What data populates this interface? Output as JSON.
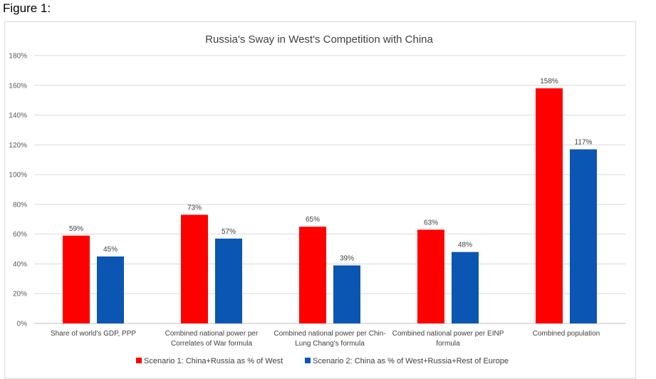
{
  "figure_label": "Figure 1:",
  "chart_data": {
    "type": "bar",
    "title": "Russia's Sway in West's Competition with China",
    "xlabel": "",
    "ylabel": "",
    "ylim": [
      0,
      180
    ],
    "yticks": [
      0,
      20,
      40,
      60,
      80,
      100,
      120,
      140,
      160,
      180
    ],
    "ytick_suffix": "%",
    "grid": true,
    "legend_position": "bottom",
    "categories": [
      [
        "Share of world's GDP, PPP"
      ],
      [
        "Combined national power per",
        "Correlates of War formula"
      ],
      [
        "Combined national power per Chin-",
        "Lung Chang's formula"
      ],
      [
        "Combined national power per EINP",
        "formula"
      ],
      [
        "Combined population"
      ]
    ],
    "series": [
      {
        "name": "Scenario 1: China+Russia as % of West",
        "color": "#ff0000",
        "values": [
          59,
          73,
          65,
          63,
          158
        ],
        "labels": [
          "59%",
          "73%",
          "65%",
          "63%",
          "158%"
        ]
      },
      {
        "name": "Scenario 2: China as % of West+Russia+Rest of Europe",
        "color": "#0b56b3",
        "values": [
          45,
          57,
          39,
          48,
          117
        ],
        "labels": [
          "45%",
          "57%",
          "39%",
          "48%",
          "117%"
        ]
      }
    ]
  }
}
